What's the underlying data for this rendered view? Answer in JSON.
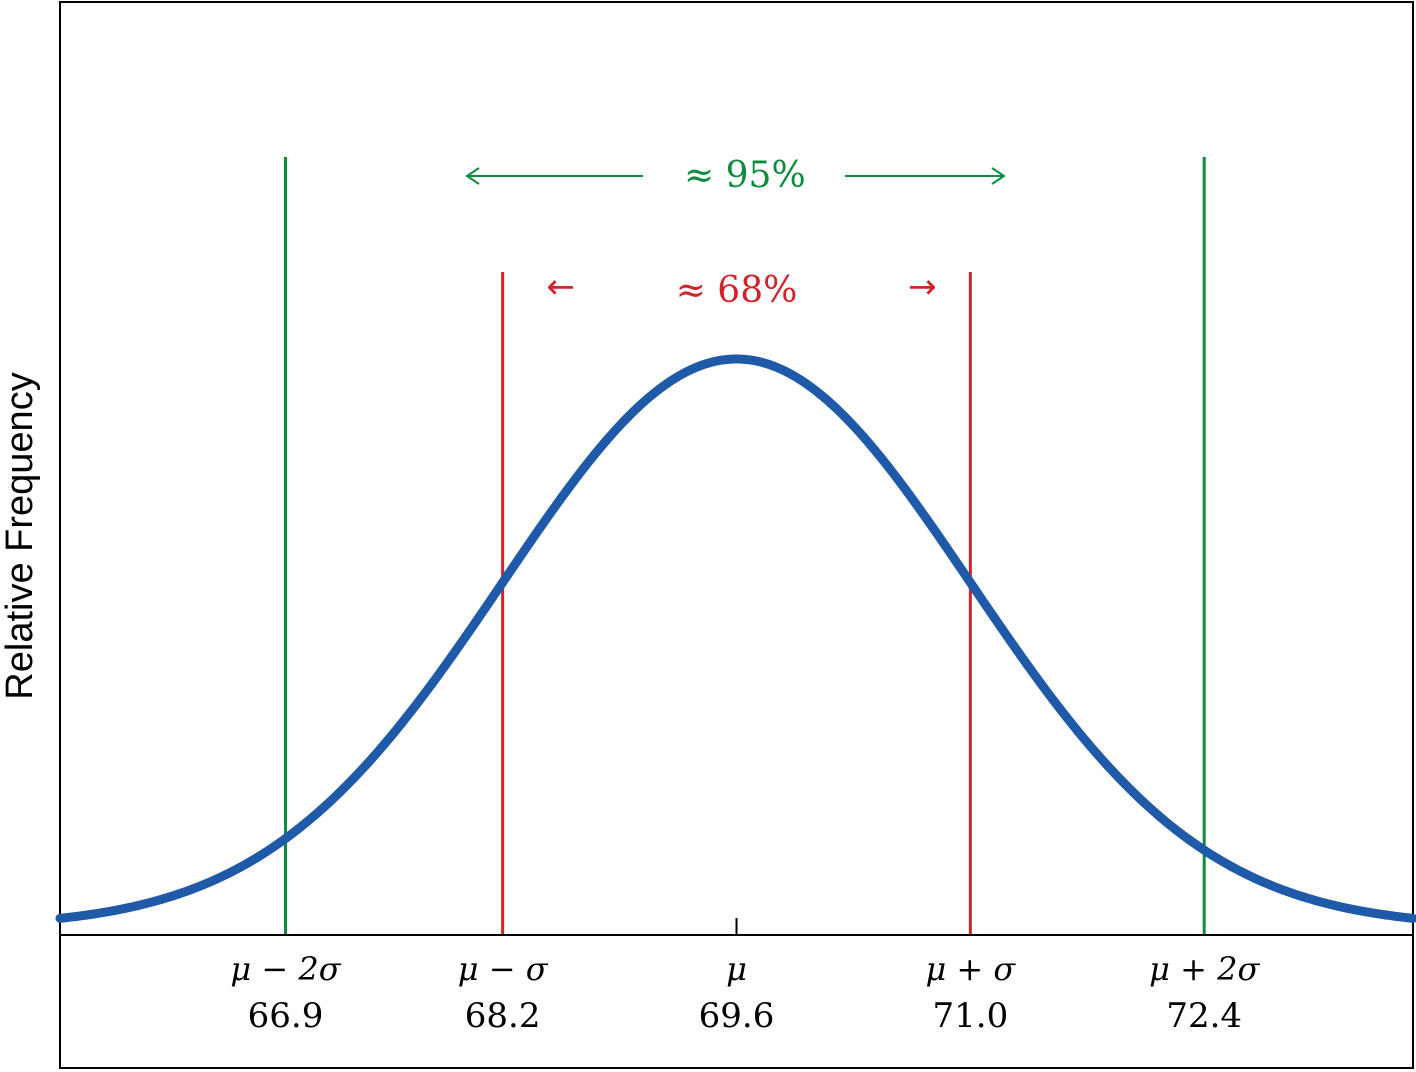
{
  "chart_data": {
    "type": "line",
    "title": "",
    "xlabel": "",
    "ylabel": "Relative Frequency",
    "mean": 69.6,
    "sd": 1.4,
    "xlim": [
      65.55,
      73.65
    ],
    "grid": false,
    "series": [
      {
        "color": "#1f5aa8",
        "kind": "normal-density",
        "mean": 69.6,
        "sd": 1.4
      }
    ],
    "ticks": [
      {
        "symbol": "μ − 2σ",
        "value": "66.9",
        "x": 66.9
      },
      {
        "symbol": "μ − σ",
        "value": "68.2",
        "x": 68.2
      },
      {
        "symbol": "μ",
        "value": "69.6",
        "x": 69.6
      },
      {
        "symbol": "μ + σ",
        "value": "71.0",
        "x": 71.0
      },
      {
        "symbol": "μ + 2σ",
        "value": "72.4",
        "x": 72.4
      }
    ],
    "bands": [
      {
        "label": "≈ 68%",
        "from": 68.2,
        "to": 71.0,
        "color": "#d0232b"
      },
      {
        "label": "≈ 95%",
        "from": 66.9,
        "to": 72.4,
        "color": "#0e8c3e"
      }
    ],
    "arrows": {
      "left": "←",
      "right": "→"
    }
  }
}
